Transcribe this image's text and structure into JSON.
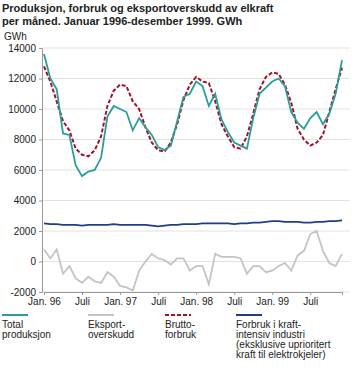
{
  "chart_data": {
    "type": "line",
    "title": "Produksjon, forbruk og eksportoverskudd av elkraft\nper måned. Januar 1996-desember 1999. GWh",
    "y_label": "GWh",
    "categories": [
      "Jan. 96",
      null,
      null,
      null,
      null,
      null,
      "Juli",
      null,
      null,
      null,
      null,
      null,
      "Jan. 97",
      null,
      null,
      null,
      null,
      null,
      "Juli",
      null,
      null,
      null,
      null,
      null,
      "Jan. 98",
      null,
      null,
      null,
      null,
      null,
      "Juli",
      null,
      null,
      null,
      null,
      null,
      "Jan. 99",
      null,
      null,
      null,
      null,
      null,
      "Juli",
      null,
      null,
      null,
      null,
      null
    ],
    "ylim": [
      -2000,
      14000
    ],
    "yticks": [
      -2000,
      0,
      2000,
      4000,
      6000,
      8000,
      10000,
      12000,
      14000
    ],
    "grid": true,
    "legend": "bottom",
    "series": [
      {
        "name": "Total\nproduksjon",
        "color": "#2a9d9d",
        "line_style": "solid",
        "values": [
          13600,
          12000,
          11300,
          8400,
          8300,
          6300,
          5600,
          5900,
          6000,
          6800,
          9500,
          10200,
          10000,
          9800,
          8600,
          9400,
          8800,
          8300,
          7500,
          7300,
          7600,
          9200,
          10800,
          11000,
          11800,
          11500,
          10200,
          11000,
          9300,
          8500,
          7800,
          7600,
          7400,
          9400,
          11000,
          11400,
          11800,
          12000,
          11500,
          9800,
          9100,
          8700,
          9400,
          9800,
          9000,
          9700,
          11000,
          13200
        ]
      },
      {
        "name": "Eksport-\noverskudd",
        "color": "#c4c4c4",
        "line_style": "solid",
        "values": [
          800,
          200,
          800,
          -800,
          -300,
          -1100,
          -1400,
          -1000,
          -1300,
          -1400,
          -700,
          -1000,
          -1600,
          -1700,
          -1900,
          -600,
          0,
          500,
          200,
          100,
          -200,
          200,
          200,
          -600,
          -300,
          -300,
          -1500,
          500,
          300,
          300,
          300,
          200,
          -800,
          -300,
          -300,
          -700,
          -600,
          -300,
          -100,
          -600,
          400,
          700,
          1800,
          2000,
          700,
          -100,
          -300,
          500
        ]
      },
      {
        "name": "Brutto-\nforbruk",
        "color": "#a01428",
        "line_style": "dashed",
        "values": [
          12800,
          11800,
          10500,
          9200,
          8600,
          7400,
          7000,
          6900,
          7300,
          8200,
          10200,
          11200,
          11600,
          11500,
          10500,
          10000,
          8800,
          7800,
          7300,
          7200,
          7800,
          9000,
          10600,
          11600,
          12100,
          11800,
          11700,
          10500,
          9000,
          8200,
          7500,
          7400,
          8200,
          9700,
          11300,
          12100,
          12400,
          12300,
          11600,
          10400,
          8700,
          8000,
          7600,
          7800,
          8300,
          9800,
          11300,
          12700
        ]
      },
      {
        "name": "Forbruk i kraft-\nintensiv industri\n(eksklusive uprioritert\nkraft til elektrokjeler)",
        "color": "#1f3d8c",
        "line_style": "solid",
        "values": [
          2500,
          2450,
          2450,
          2400,
          2400,
          2400,
          2350,
          2400,
          2400,
          2400,
          2400,
          2450,
          2400,
          2400,
          2400,
          2400,
          2400,
          2350,
          2300,
          2350,
          2400,
          2400,
          2450,
          2450,
          2450,
          2500,
          2500,
          2500,
          2500,
          2500,
          2450,
          2500,
          2500,
          2550,
          2550,
          2600,
          2650,
          2650,
          2600,
          2600,
          2600,
          2550,
          2550,
          2600,
          2600,
          2650,
          2650,
          2700
        ]
      }
    ]
  }
}
